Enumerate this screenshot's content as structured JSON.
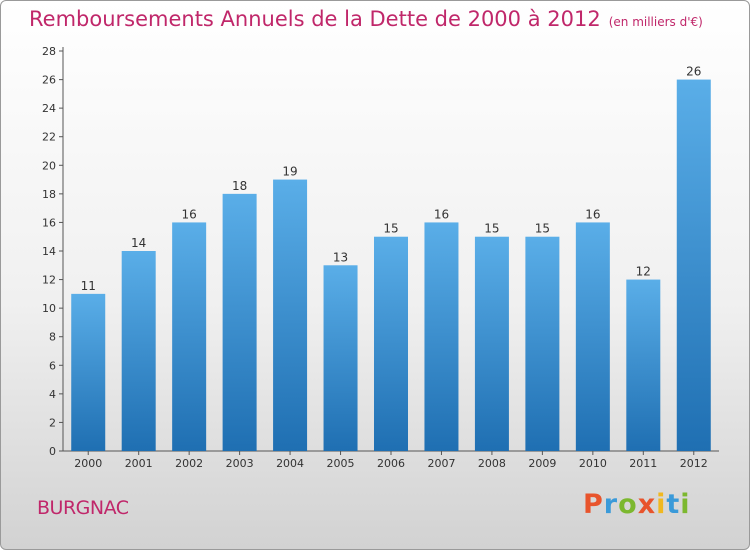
{
  "header": {
    "title": "Remboursements Annuels de la Dette de 2000 à 2012",
    "unit": "(en milliers d'€)"
  },
  "footer": {
    "town": "BURGNAC",
    "logo": "Proxiti"
  },
  "colors": {
    "title": "#c0276a",
    "bar_top": "#5aaee8",
    "bar_bottom": "#1f6fb2",
    "logo_letters": [
      "#e8542c",
      "#3a9ad9",
      "#7cb82f",
      "#e8542c",
      "#f0b820",
      "#3a9ad9",
      "#7cb82f"
    ]
  },
  "chart_data": {
    "type": "bar",
    "title": "Remboursements Annuels de la Dette de 2000 à 2012",
    "subtitle": "(en milliers d'€)",
    "xlabel": "",
    "ylabel": "",
    "categories": [
      "2000",
      "2001",
      "2002",
      "2003",
      "2004",
      "2005",
      "2006",
      "2007",
      "2008",
      "2009",
      "2010",
      "2011",
      "2012"
    ],
    "values": [
      11,
      14,
      16,
      18,
      19,
      13,
      15,
      16,
      15,
      15,
      16,
      12,
      26
    ],
    "ylim": [
      0,
      28
    ],
    "yticks": [
      0,
      2,
      4,
      6,
      8,
      10,
      12,
      14,
      16,
      18,
      20,
      22,
      24,
      26,
      28
    ],
    "grid": false,
    "data_labels": true
  }
}
